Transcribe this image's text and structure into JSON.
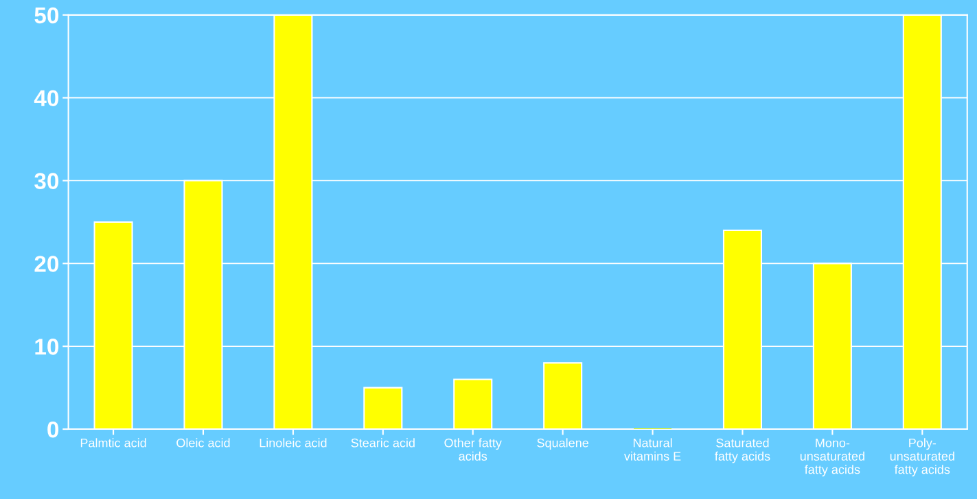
{
  "chart_data": {
    "type": "bar",
    "categories": [
      "Palmtic acid",
      "Oleic acid",
      "Linoleic acid",
      "Stearic acid",
      "Other fatty\nacids",
      "Squalene",
      "Natural\nvitamins E",
      "Saturated\nfatty acids",
      "Mono-\nunsaturated\nfatty acids",
      "Poly-\nunsaturated\nfatty acids"
    ],
    "values": [
      25,
      30,
      50,
      5,
      6,
      8,
      0,
      24,
      20,
      50
    ],
    "color": "#ffff00",
    "ylim": [
      0,
      50
    ],
    "yticks": [
      0,
      10,
      20,
      30,
      40,
      50
    ],
    "grid": "y"
  }
}
